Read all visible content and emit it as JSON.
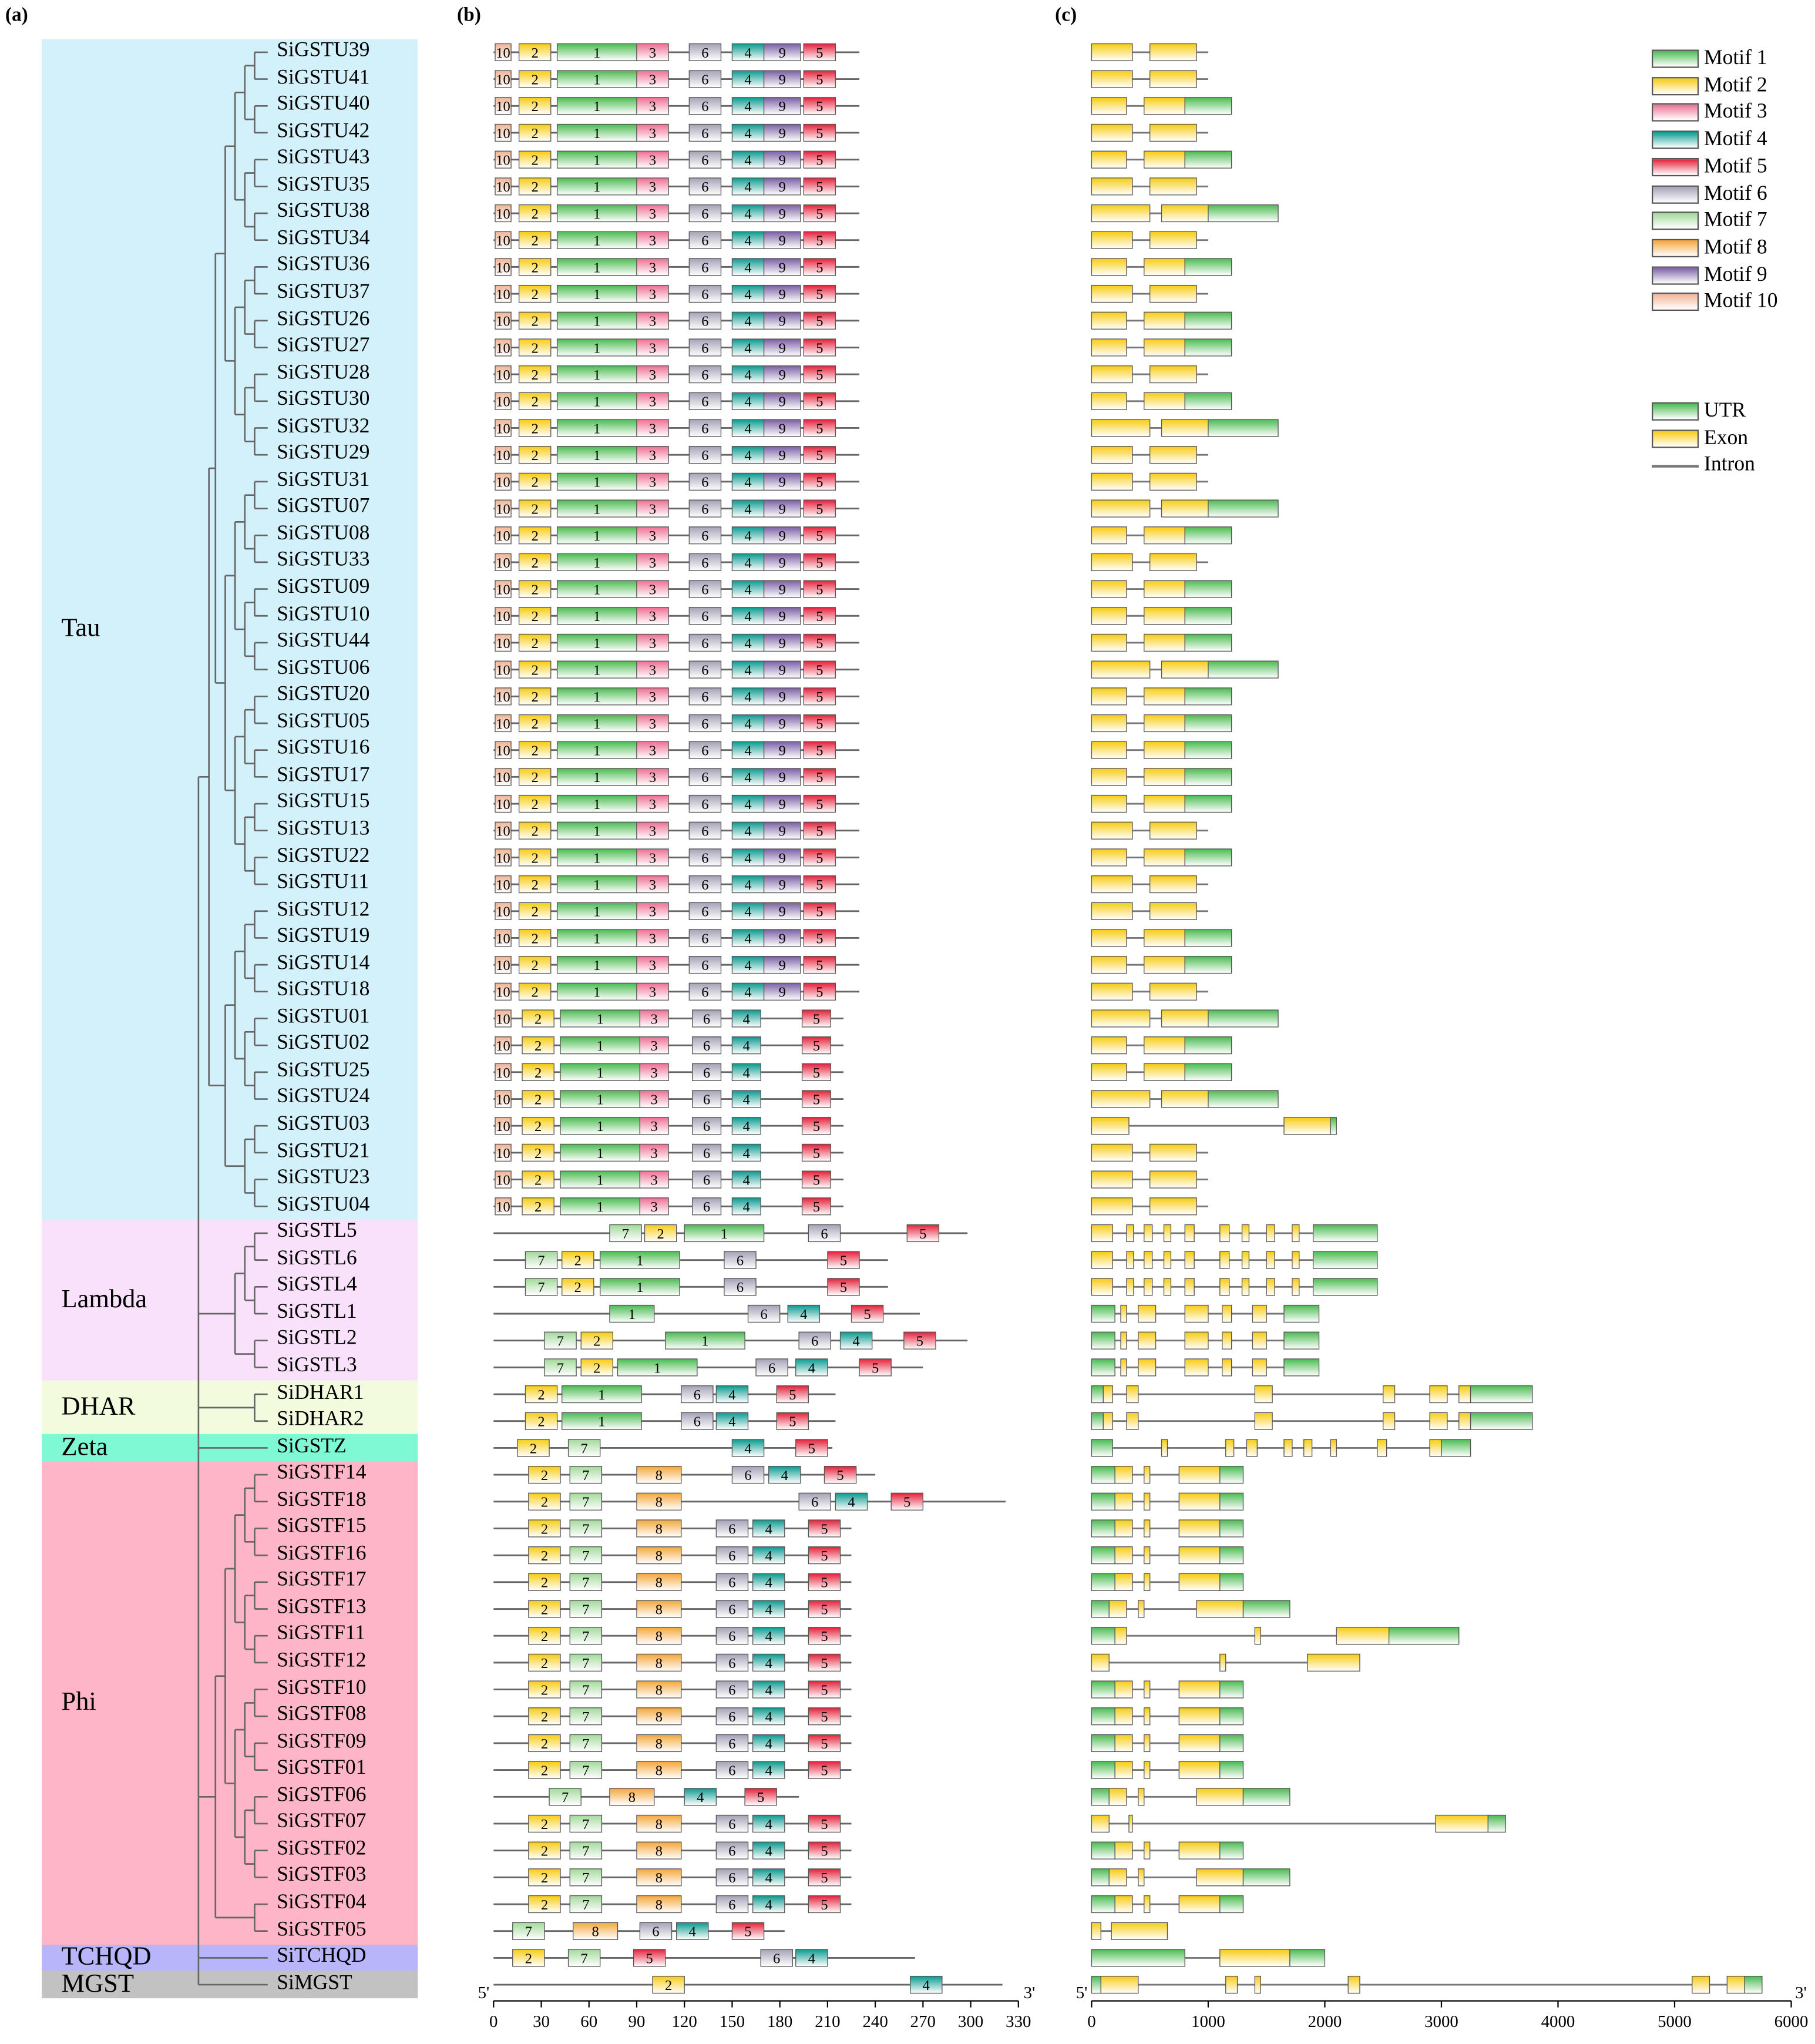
{
  "panels": {
    "a": "(a)",
    "b": "(b)",
    "c": "(c)"
  },
  "groups": [
    {
      "name": "Tau",
      "color": "#d3f1fb",
      "first": 0,
      "last": 43
    },
    {
      "name": "Lambda",
      "color": "#f9e1fb",
      "first": 44,
      "last": 49
    },
    {
      "name": "DHAR",
      "color": "#f3fbde",
      "first": 50,
      "last": 51
    },
    {
      "name": "Zeta",
      "color": "#7ff9d4",
      "first": 52,
      "last": 52
    },
    {
      "name": "Phi",
      "color": "#fdb5c7",
      "first": 53,
      "last": 70
    },
    {
      "name": "TCHQD",
      "color": "#b9b5fa",
      "first": 71,
      "last": 71
    },
    {
      "name": "MGST",
      "color": "#c2c2c2",
      "first": 72,
      "last": 72
    }
  ],
  "genes": [
    "SiGSTU39",
    "SiGSTU41",
    "SiGSTU40",
    "SiGSTU42",
    "SiGSTU43",
    "SiGSTU35",
    "SiGSTU38",
    "SiGSTU34",
    "SiGSTU36",
    "SiGSTU37",
    "SiGSTU26",
    "SiGSTU27",
    "SiGSTU28",
    "SiGSTU30",
    "SiGSTU32",
    "SiGSTU29",
    "SiGSTU31",
    "SiGSTU07",
    "SiGSTU08",
    "SiGSTU33",
    "SiGSTU09",
    "SiGSTU10",
    "SiGSTU44",
    "SiGSTU06",
    "SiGSTU20",
    "SiGSTU05",
    "SiGSTU16",
    "SiGSTU17",
    "SiGSTU15",
    "SiGSTU13",
    "SiGSTU22",
    "SiGSTU11",
    "SiGSTU12",
    "SiGSTU19",
    "SiGSTU14",
    "SiGSTU18",
    "SiGSTU01",
    "SiGSTU02",
    "SiGSTU25",
    "SiGSTU24",
    "SiGSTU03",
    "SiGSTU21",
    "SiGSTU23",
    "SiGSTU04",
    "SiGSTL5",
    "SiGSTL6",
    "SiGSTL4",
    "SiGSTL1",
    "SiGSTL2",
    "SiGSTL3",
    "SiDHAR1",
    "SiDHAR2",
    "SiGSTZ",
    "SiGSTF14",
    "SiGSTF18",
    "SiGSTF15",
    "SiGSTF16",
    "SiGSTF17",
    "SiGSTF13",
    "SiGSTF11",
    "SiGSTF12",
    "SiGSTF10",
    "SiGSTF08",
    "SiGSTF09",
    "SiGSTF01",
    "SiGSTF06",
    "SiGSTF07",
    "SiGSTF02",
    "SiGSTF03",
    "SiGSTF04",
    "SiGSTF05",
    "SiTCHQD",
    "SiMGST"
  ],
  "motif_legend": [
    {
      "label": "Motif 1",
      "color": "#4cbb52"
    },
    {
      "label": "Motif 2",
      "color": "#f7cc12"
    },
    {
      "label": "Motif 3",
      "color": "#ee6f93"
    },
    {
      "label": "Motif 4",
      "color": "#0a9a8f"
    },
    {
      "label": "Motif 5",
      "color": "#e3213a"
    },
    {
      "label": "Motif 6",
      "color": "#a4a2b6"
    },
    {
      "label": "Motif 7",
      "color": "#a3d99b"
    },
    {
      "label": "Motif 8",
      "color": "#f4a73a"
    },
    {
      "label": "Motif 9",
      "color": "#7a5fa4"
    },
    {
      "label": "Motif 10",
      "color": "#efb596"
    }
  ],
  "structure_legend": [
    {
      "label": "UTR",
      "color": "#4cbb52"
    },
    {
      "label": "Exon",
      "color": "#f7cc12"
    },
    {
      "label": "Intron",
      "color": "#777777"
    }
  ],
  "axis_b": {
    "start_label": "5'",
    "end_label": "3'",
    "ticks": [
      0,
      30,
      60,
      90,
      120,
      150,
      180,
      210,
      240,
      270,
      300,
      330
    ]
  },
  "axis_c": {
    "start_label": "5'",
    "end_label": "3'",
    "ticks": [
      0,
      1000,
      2000,
      3000,
      4000,
      5000,
      6000
    ]
  },
  "motif_tracks": {
    "tau_full": {
      "len": 230,
      "motifs": [
        [
          10,
          1,
          10
        ],
        [
          2,
          16,
          20
        ],
        [
          1,
          40,
          50
        ],
        [
          3,
          90,
          20
        ],
        [
          6,
          123,
          20
        ],
        [
          4,
          150,
          20
        ],
        [
          9,
          170,
          23
        ],
        [
          5,
          195,
          20
        ]
      ]
    },
    "tau_short": {
      "len": 220,
      "motifs": [
        [
          10,
          1,
          10
        ],
        [
          2,
          18,
          20
        ],
        [
          1,
          42,
          50
        ],
        [
          3,
          92,
          18
        ],
        [
          6,
          125,
          18
        ],
        [
          4,
          150,
          18
        ],
        [
          5,
          194,
          18
        ]
      ]
    },
    "L5": {
      "len": 298,
      "motifs": [
        [
          7,
          73,
          20
        ],
        [
          2,
          95,
          20
        ],
        [
          1,
          120,
          50
        ],
        [
          6,
          198,
          20
        ],
        [
          5,
          260,
          20
        ]
      ]
    },
    "L6": {
      "len": 248,
      "motifs": [
        [
          7,
          20,
          20
        ],
        [
          2,
          43,
          20
        ],
        [
          1,
          67,
          50
        ],
        [
          6,
          145,
          20
        ],
        [
          5,
          210,
          20
        ]
      ]
    },
    "L4": {
      "len": 248,
      "motifs": [
        [
          7,
          20,
          20
        ],
        [
          2,
          43,
          20
        ],
        [
          1,
          67,
          50
        ],
        [
          6,
          145,
          20
        ],
        [
          5,
          210,
          20
        ]
      ]
    },
    "L1": {
      "len": 268,
      "motifs": [
        [
          1,
          73,
          28
        ],
        [
          6,
          160,
          20
        ],
        [
          4,
          185,
          20
        ],
        [
          5,
          225,
          20
        ]
      ]
    },
    "L2": {
      "len": 298,
      "motifs": [
        [
          7,
          32,
          20
        ],
        [
          2,
          55,
          20
        ],
        [
          1,
          108,
          50
        ],
        [
          6,
          192,
          20
        ],
        [
          4,
          218,
          20
        ],
        [
          5,
          258,
          20
        ]
      ]
    },
    "L3": {
      "len": 270,
      "motifs": [
        [
          7,
          32,
          20
        ],
        [
          2,
          55,
          20
        ],
        [
          1,
          78,
          50
        ],
        [
          6,
          165,
          20
        ],
        [
          4,
          190,
          20
        ],
        [
          5,
          230,
          20
        ]
      ]
    },
    "DHAR": {
      "len": 215,
      "motifs": [
        [
          2,
          20,
          20
        ],
        [
          1,
          43,
          50
        ],
        [
          6,
          118,
          20
        ],
        [
          4,
          140,
          20
        ],
        [
          5,
          178,
          20
        ]
      ]
    },
    "Z": {
      "len": 213,
      "motifs": [
        [
          2,
          15,
          20
        ],
        [
          7,
          47,
          20
        ],
        [
          4,
          150,
          20
        ],
        [
          5,
          190,
          20
        ]
      ]
    },
    "F14": {
      "len": 240,
      "motifs": [
        [
          2,
          22,
          20
        ],
        [
          7,
          48,
          20
        ],
        [
          8,
          90,
          28
        ],
        [
          6,
          150,
          20
        ],
        [
          4,
          173,
          20
        ],
        [
          5,
          208,
          20
        ]
      ]
    },
    "F18": {
      "len": 322,
      "motifs": [
        [
          2,
          22,
          20
        ],
        [
          7,
          48,
          20
        ],
        [
          8,
          90,
          28
        ],
        [
          6,
          192,
          20
        ],
        [
          4,
          215,
          20
        ],
        [
          5,
          250,
          20
        ]
      ]
    },
    "F_std": {
      "len": 225,
      "motifs": [
        [
          2,
          22,
          20
        ],
        [
          7,
          48,
          20
        ],
        [
          8,
          90,
          28
        ],
        [
          6,
          140,
          20
        ],
        [
          4,
          163,
          20
        ],
        [
          5,
          198,
          20
        ]
      ]
    },
    "F05": {
      "len": 183,
      "motifs": [
        [
          7,
          12,
          20
        ],
        [
          8,
          50,
          28
        ],
        [
          6,
          92,
          20
        ],
        [
          4,
          115,
          20
        ],
        [
          5,
          150,
          20
        ]
      ]
    },
    "F06": {
      "len": 192,
      "motifs": [
        [
          7,
          35,
          20
        ],
        [
          8,
          73,
          28
        ],
        [
          4,
          120,
          20
        ],
        [
          5,
          158,
          20
        ]
      ]
    },
    "TCHQD": {
      "len": 265,
      "motifs": [
        [
          2,
          12,
          20
        ],
        [
          7,
          47,
          20
        ],
        [
          5,
          88,
          20
        ],
        [
          6,
          168,
          20
        ],
        [
          4,
          190,
          20
        ]
      ]
    },
    "MGST": {
      "len": 320,
      "motifs": [
        [
          2,
          100,
          20
        ],
        [
          4,
          262,
          20
        ]
      ]
    }
  },
  "gene_tracks": {
    "simple2": {
      "len": 1000,
      "parts": [
        [
          "e",
          0,
          350
        ],
        [
          "e",
          500,
          900
        ]
      ]
    },
    "simple3": {
      "len": 1200,
      "parts": [
        [
          "e",
          0,
          300
        ],
        [
          "e",
          450,
          800
        ],
        [
          "u",
          800,
          1200
        ]
      ]
    },
    "long": {
      "len": 1600,
      "parts": [
        [
          "e",
          0,
          500
        ],
        [
          "e",
          600,
          1000
        ],
        [
          "u",
          1000,
          1600
        ]
      ]
    },
    "U03": {
      "len": 2100,
      "parts": [
        [
          "e",
          0,
          320
        ],
        [
          "e",
          1650,
          2050
        ],
        [
          "u",
          2050,
          2100
        ]
      ]
    },
    "L": {
      "len": 2450,
      "parts": [
        [
          "e",
          0,
          180
        ],
        [
          "e",
          300,
          360
        ],
        [
          "e",
          450,
          520
        ],
        [
          "e",
          620,
          680
        ],
        [
          "e",
          800,
          880
        ],
        [
          "e",
          1100,
          1180
        ],
        [
          "e",
          1290,
          1350
        ],
        [
          "e",
          1500,
          1570
        ],
        [
          "e",
          1720,
          1780
        ],
        [
          "u",
          1900,
          2450
        ]
      ]
    },
    "L1": {
      "len": 1950,
      "parts": [
        [
          "u",
          0,
          200
        ],
        [
          "e",
          250,
          300
        ],
        [
          "e",
          400,
          550
        ],
        [
          "e",
          800,
          1000
        ],
        [
          "e",
          1120,
          1200
        ],
        [
          "e",
          1380,
          1500
        ],
        [
          "u",
          1650,
          1950
        ]
      ]
    },
    "DHAR": {
      "len": 3780,
      "parts": [
        [
          "u",
          0,
          100
        ],
        [
          "e",
          100,
          180
        ],
        [
          "e",
          300,
          400
        ],
        [
          "e",
          1400,
          1550
        ],
        [
          "e",
          2500,
          2600
        ],
        [
          "e",
          2900,
          3050
        ],
        [
          "e",
          3150,
          3250
        ],
        [
          "u",
          3250,
          3780
        ]
      ]
    },
    "Z": {
      "len": 3250,
      "parts": [
        [
          "u",
          0,
          180
        ],
        [
          "e",
          600,
          650
        ],
        [
          "e",
          1150,
          1220
        ],
        [
          "e",
          1330,
          1420
        ],
        [
          "e",
          1650,
          1720
        ],
        [
          "e",
          1820,
          1890
        ],
        [
          "e",
          2050,
          2100
        ],
        [
          "e",
          2450,
          2530
        ],
        [
          "e",
          2900,
          3000
        ],
        [
          "u",
          3000,
          3250
        ]
      ]
    },
    "F_a": {
      "len": 1300,
      "parts": [
        [
          "u",
          0,
          200
        ],
        [
          "e",
          200,
          350
        ],
        [
          "e",
          450,
          500
        ],
        [
          "e",
          750,
          1100
        ],
        [
          "u",
          1100,
          1300
        ]
      ]
    },
    "F_b": {
      "len": 1700,
      "parts": [
        [
          "u",
          0,
          150
        ],
        [
          "e",
          150,
          300
        ],
        [
          "e",
          400,
          450
        ],
        [
          "e",
          900,
          1300
        ],
        [
          "u",
          1300,
          1700
        ]
      ]
    },
    "F11": {
      "len": 3150,
      "parts": [
        [
          "u",
          0,
          200
        ],
        [
          "e",
          200,
          300
        ],
        [
          "e",
          1400,
          1450
        ],
        [
          "e",
          2100,
          2550
        ],
        [
          "u",
          2550,
          3150
        ]
      ]
    },
    "F12": {
      "len": 2300,
      "parts": [
        [
          "e",
          0,
          150
        ],
        [
          "e",
          1100,
          1150
        ],
        [
          "e",
          1850,
          2300
        ]
      ]
    },
    "F07": {
      "len": 3550,
      "parts": [
        [
          "e",
          0,
          150
        ],
        [
          "e",
          320,
          350
        ],
        [
          "e",
          2950,
          3400
        ],
        [
          "u",
          3400,
          3550
        ]
      ]
    },
    "F05": {
      "len": 650,
      "parts": [
        [
          "e",
          0,
          80
        ],
        [
          "e",
          170,
          650
        ]
      ]
    },
    "TCHQD": {
      "len": 2000,
      "parts": [
        [
          "u",
          0,
          800
        ],
        [
          "e",
          1100,
          1700
        ],
        [
          "u",
          1700,
          2000
        ]
      ]
    },
    "MGST": {
      "len": 5750,
      "parts": [
        [
          "u",
          0,
          80
        ],
        [
          "e",
          80,
          400
        ],
        [
          "e",
          1150,
          1250
        ],
        [
          "e",
          1400,
          1450
        ],
        [
          "e",
          2200,
          2300
        ],
        [
          "e",
          5150,
          5300
        ],
        [
          "e",
          5450,
          5600
        ],
        [
          "u",
          5600,
          5750
        ]
      ]
    }
  },
  "gene_track_map": [
    "simple2",
    "simple2",
    "simple3",
    "simple2",
    "simple3",
    "simple2",
    "long",
    "simple2",
    "simple3",
    "simple2",
    "simple3",
    "simple3",
    "simple2",
    "simple3",
    "long",
    "simple2",
    "simple2",
    "long",
    "simple3",
    "simple2",
    "simple3",
    "simple3",
    "simple3",
    "long",
    "simple3",
    "simple3",
    "simple3",
    "simple3",
    "simple3",
    "simple2",
    "simple3",
    "simple2",
    "simple2",
    "simple3",
    "simple3",
    "simple2",
    "long",
    "simple3",
    "simple3",
    "long",
    "U03",
    "simple2",
    "simple2",
    "simple2",
    "L",
    "L",
    "L",
    "L1",
    "L1",
    "L1",
    "DHAR",
    "DHAR",
    "Z",
    "F_a",
    "F_a",
    "F_a",
    "F_a",
    "F_a",
    "F_b",
    "F11",
    "F12",
    "F_a",
    "F_a",
    "F_a",
    "F_a",
    "F_b",
    "F07",
    "F_a",
    "F_b",
    "F_a",
    "F05",
    "TCHQD",
    "MGST"
  ],
  "motif_track_map": [
    "tau_full",
    "tau_full",
    "tau_full",
    "tau_full",
    "tau_full",
    "tau_full",
    "tau_full",
    "tau_full",
    "tau_full",
    "tau_full",
    "tau_full",
    "tau_full",
    "tau_full",
    "tau_full",
    "tau_full",
    "tau_full",
    "tau_full",
    "tau_full",
    "tau_full",
    "tau_full",
    "tau_full",
    "tau_full",
    "tau_full",
    "tau_full",
    "tau_full",
    "tau_full",
    "tau_full",
    "tau_full",
    "tau_full",
    "tau_full",
    "tau_full",
    "tau_full",
    "tau_full",
    "tau_full",
    "tau_full",
    "tau_full",
    "tau_short",
    "tau_short",
    "tau_short",
    "tau_short",
    "tau_short",
    "tau_short",
    "tau_short",
    "tau_short",
    "L5",
    "L6",
    "L4",
    "L1",
    "L2",
    "L3",
    "DHAR",
    "DHAR",
    "Z",
    "F14",
    "F18",
    "F_std",
    "F_std",
    "F_std",
    "F_std",
    "F_std",
    "F_std",
    "F_std",
    "F_std",
    "F_std",
    "F_std",
    "F06",
    "F_std",
    "F_std",
    "F_std",
    "F_std",
    "F05",
    "TCHQD",
    "MGST"
  ]
}
